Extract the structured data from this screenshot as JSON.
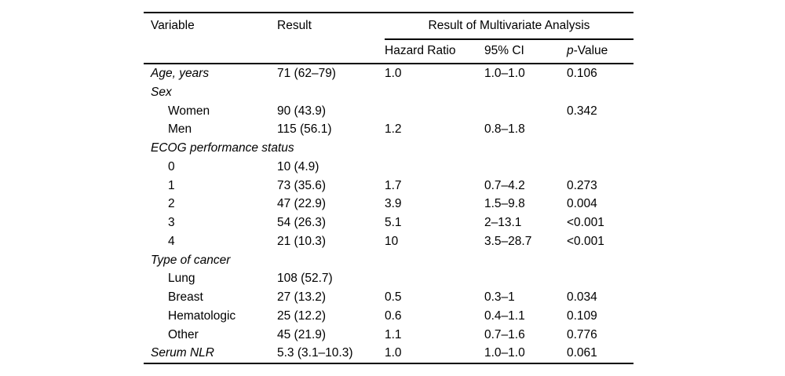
{
  "table": {
    "header": {
      "variable": "Variable",
      "result": "Result",
      "multivariate": "Result of Multivariate Analysis",
      "hazard_ratio": "Hazard Ratio",
      "ci": "95% CI",
      "p_value_italic": "p",
      "p_value_rest": "-Value"
    },
    "rows": [
      {
        "style": "group",
        "variable": "Age, years",
        "result": "71 (62–79)",
        "hr": "1.0",
        "ci": "1.0–1.0",
        "p": "0.106"
      },
      {
        "style": "group",
        "variable": "Sex",
        "result": "",
        "hr": "",
        "ci": "",
        "p": ""
      },
      {
        "style": "sub",
        "variable": "Women",
        "result": "90 (43.9)",
        "hr": "",
        "ci": "",
        "p": "0.342"
      },
      {
        "style": "sub",
        "variable": "Men",
        "result": "115 (56.1)",
        "hr": "1.2",
        "ci": "0.8–1.8",
        "p": ""
      },
      {
        "style": "group",
        "variable": "ECOG performance status",
        "result": "",
        "hr": "",
        "ci": "",
        "p": ""
      },
      {
        "style": "sub",
        "variable": "0",
        "result": "10 (4.9)",
        "hr": "",
        "ci": "",
        "p": ""
      },
      {
        "style": "sub",
        "variable": "1",
        "result": "73 (35.6)",
        "hr": "1.7",
        "ci": "0.7–4.2",
        "p": "0.273"
      },
      {
        "style": "sub",
        "variable": "2",
        "result": "47 (22.9)",
        "hr": "3.9",
        "ci": "1.5–9.8",
        "p": "0.004"
      },
      {
        "style": "sub",
        "variable": "3",
        "result": "54 (26.3)",
        "hr": "5.1",
        "ci": "2–13.1",
        "p": "<0.001"
      },
      {
        "style": "sub",
        "variable": "4",
        "result": "21 (10.3)",
        "hr": "10",
        "ci": "3.5–28.7",
        "p": "<0.001"
      },
      {
        "style": "group",
        "variable": "Type of cancer",
        "result": "",
        "hr": "",
        "ci": "",
        "p": ""
      },
      {
        "style": "sub",
        "variable": "Lung",
        "result": "108 (52.7)",
        "hr": "",
        "ci": "",
        "p": ""
      },
      {
        "style": "sub",
        "variable": "Breast",
        "result": "27 (13.2)",
        "hr": "0.5",
        "ci": "0.3–1",
        "p": "0.034"
      },
      {
        "style": "sub",
        "variable": "Hematologic",
        "result": "25 (12.2)",
        "hr": "0.6",
        "ci": "0.4–1.1",
        "p": "0.109"
      },
      {
        "style": "sub",
        "variable": "Other",
        "result": "45 (21.9)",
        "hr": "1.1",
        "ci": "0.7–1.6",
        "p": "0.776"
      },
      {
        "style": "group",
        "variable": "Serum NLR",
        "result": "5.3 (3.1–10.3)",
        "hr": "1.0",
        "ci": "1.0–1.0",
        "p": "0.061"
      }
    ]
  }
}
